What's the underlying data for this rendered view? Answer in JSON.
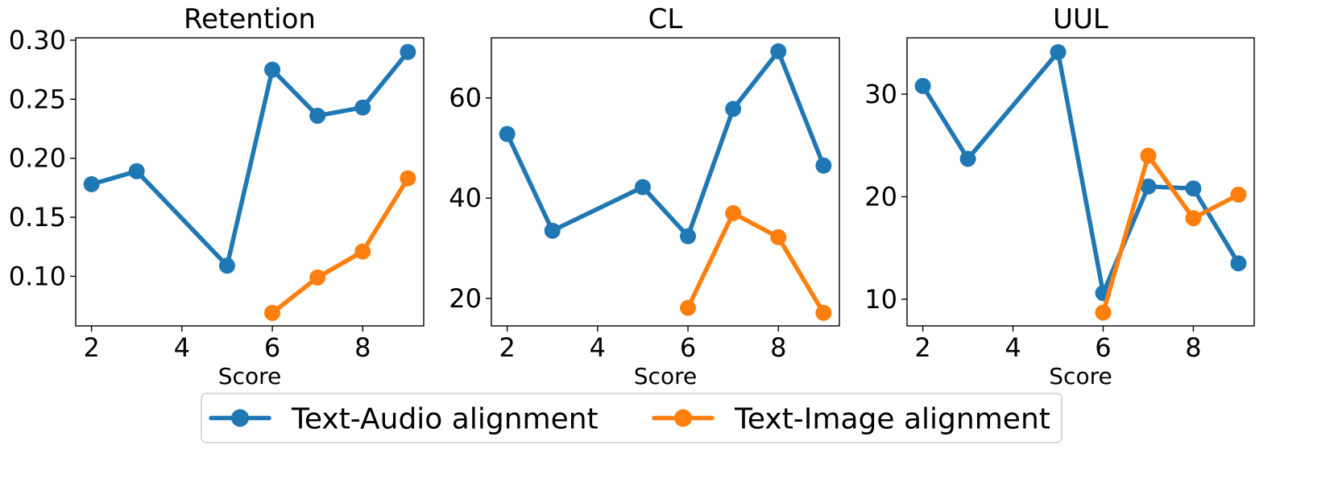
{
  "chart_data": [
    {
      "type": "line",
      "title": "Retention",
      "xlabel": "Score",
      "ylabel": "",
      "xlim": [
        1.65,
        9.35
      ],
      "ylim": [
        0.058,
        0.302
      ],
      "xticks": [
        2,
        4,
        6,
        8
      ],
      "yticks": [
        0.1,
        0.15,
        0.2,
        0.25,
        0.3
      ],
      "ytick_labels": [
        "0.10",
        "0.15",
        "0.20",
        "0.25",
        "0.30"
      ],
      "grid": false,
      "series": [
        {
          "name": "Text-Audio alignment",
          "color": "#1f77b4",
          "x": [
            2,
            3,
            5,
            6,
            7,
            8,
            9
          ],
          "y": [
            0.178,
            0.189,
            0.109,
            0.275,
            0.236,
            0.243,
            0.29
          ]
        },
        {
          "name": "Text-Image alignment",
          "color": "#ff7f0e",
          "x": [
            6,
            7,
            8,
            9
          ],
          "y": [
            0.069,
            0.099,
            0.121,
            0.183
          ]
        }
      ]
    },
    {
      "type": "line",
      "title": "CL",
      "xlabel": "Score",
      "ylabel": "",
      "xlim": [
        1.65,
        9.35
      ],
      "ylim": [
        14.5,
        72.0
      ],
      "xticks": [
        2,
        4,
        6,
        8
      ],
      "yticks": [
        20,
        40,
        60
      ],
      "ytick_labels": [
        "20",
        "40",
        "60"
      ],
      "grid": false,
      "series": [
        {
          "name": "Text-Audio alignment",
          "color": "#1f77b4",
          "x": [
            2,
            3,
            5,
            6,
            7,
            8,
            9
          ],
          "y": [
            52.8,
            33.5,
            42.2,
            32.4,
            57.8,
            69.3,
            46.5
          ]
        },
        {
          "name": "Text-Image alignment",
          "color": "#ff7f0e",
          "x": [
            6,
            7,
            8,
            9
          ],
          "y": [
            18.1,
            37.0,
            32.2,
            17.1
          ]
        }
      ]
    },
    {
      "type": "line",
      "title": "UUL",
      "xlabel": "Score",
      "ylabel": "",
      "xlim": [
        1.65,
        9.35
      ],
      "ylim": [
        7.4,
        35.5
      ],
      "xticks": [
        2,
        4,
        6,
        8
      ],
      "yticks": [
        10,
        20,
        30
      ],
      "ytick_labels": [
        "10",
        "20",
        "30"
      ],
      "grid": false,
      "series": [
        {
          "name": "Text-Audio alignment",
          "color": "#1f77b4",
          "x": [
            2,
            3,
            5,
            6,
            7,
            8,
            9
          ],
          "y": [
            30.8,
            23.7,
            34.1,
            10.6,
            21.0,
            20.8,
            13.5
          ]
        },
        {
          "name": "Text-Image alignment",
          "color": "#ff7f0e",
          "x": [
            6,
            7,
            8,
            9
          ],
          "y": [
            8.7,
            24.0,
            17.9,
            20.2
          ]
        }
      ]
    }
  ],
  "legend": {
    "placement": "bottom-center",
    "entries": [
      {
        "label": "Text-Audio alignment",
        "color": "#1f77b4"
      },
      {
        "label": "Text-Image alignment",
        "color": "#ff7f0e"
      }
    ]
  }
}
